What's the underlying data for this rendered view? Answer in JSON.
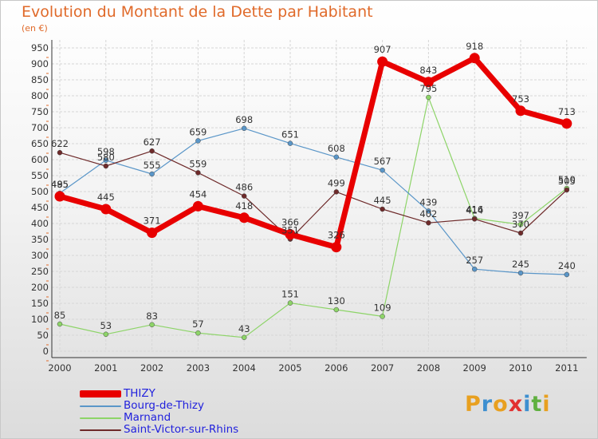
{
  "title": "Evolution du Montant de la Dette par Habitant",
  "subtitle": "(en €)",
  "logo": {
    "text": "Proxiti",
    "letters": [
      {
        "ch": "P",
        "color": "#e8a020"
      },
      {
        "ch": "r",
        "color": "#3d8fd0"
      },
      {
        "ch": "o",
        "color": "#e8a020"
      },
      {
        "ch": "x",
        "color": "#e23030"
      },
      {
        "ch": "i",
        "color": "#3d8fd0"
      },
      {
        "ch": "t",
        "color": "#60b040"
      },
      {
        "ch": "i",
        "color": "#e8a020"
      }
    ]
  },
  "chart_data": {
    "type": "line",
    "title": "Evolution du Montant de la Dette par Habitant",
    "ylabel": "(en €)",
    "xlabel": "",
    "x": [
      "2000",
      "2001",
      "2002",
      "2003",
      "2004",
      "2005",
      "2006",
      "2007",
      "2008",
      "2009",
      "2010",
      "2011"
    ],
    "ylim": [
      0,
      950
    ],
    "yticks": [
      0,
      50,
      100,
      150,
      200,
      250,
      300,
      350,
      400,
      450,
      500,
      550,
      600,
      650,
      700,
      750,
      800,
      850,
      900,
      950
    ],
    "grid": true,
    "legend": "bottom",
    "series": [
      {
        "name": "Marnand",
        "color": "#8dd468",
        "values": [
          85,
          53,
          83,
          57,
          43,
          151,
          130,
          109,
          795,
          416,
          397,
          510
        ]
      },
      {
        "name": "Bourg-de-Thizy",
        "color": "#5a96c8",
        "values": [
          495,
          598,
          555,
          659,
          698,
          651,
          608,
          567,
          439,
          257,
          245,
          240
        ]
      },
      {
        "name": "Saint-Victor-sur-Rhins",
        "color": "#6e2a2a",
        "values": [
          622,
          580,
          627,
          559,
          486,
          351,
          499,
          445,
          402,
          414,
          370,
          505
        ]
      },
      {
        "name": "THIZY",
        "color": "#e80000",
        "values": [
          485,
          445,
          371,
          454,
          418,
          366,
          326,
          907,
          843,
          918,
          753,
          713
        ]
      }
    ]
  },
  "legend_items": [
    {
      "name": "THIZY",
      "color": "#e80000"
    },
    {
      "name": "Bourg-de-Thizy",
      "color": "#5a96c8"
    },
    {
      "name": "Marnand",
      "color": "#8dd468"
    },
    {
      "name": "Saint-Victor-sur-Rhins",
      "color": "#6e2a2a"
    }
  ]
}
